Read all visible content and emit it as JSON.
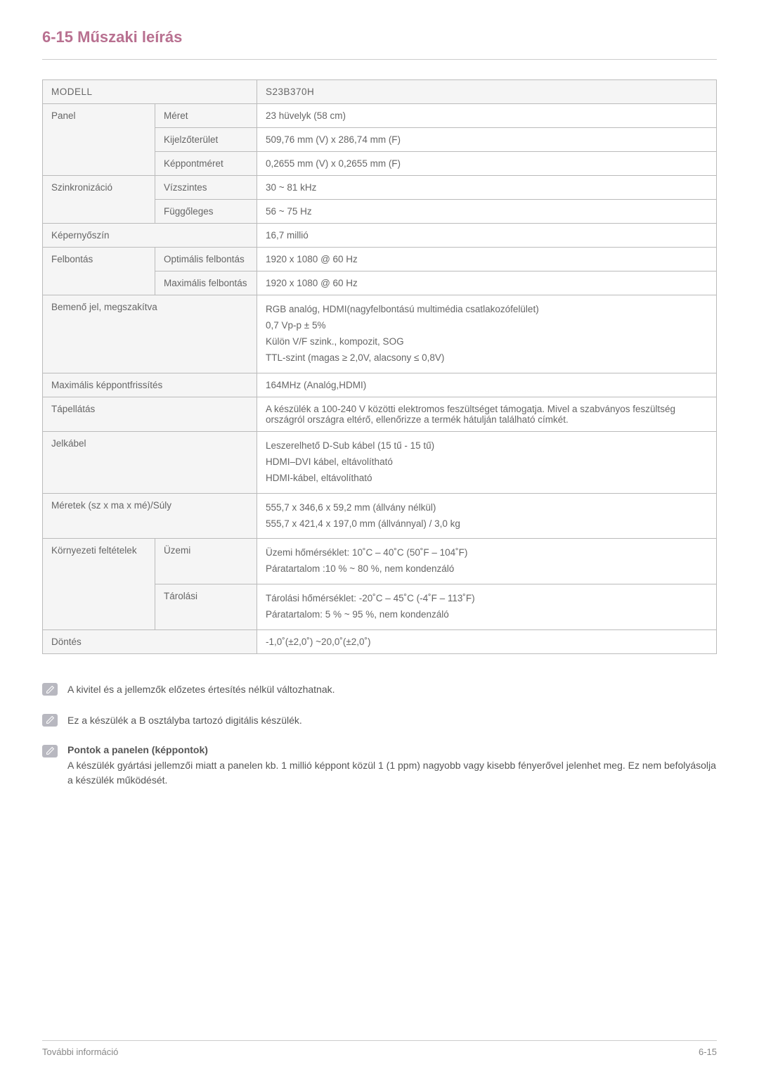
{
  "heading": "6-15  Műszaki leírás",
  "table": {
    "header_model": "MODELL",
    "header_product": "S23B370H",
    "rows": [
      {
        "a": "Panel",
        "b": "Méret",
        "c": "23 hüvelyk (58 cm)",
        "a_rowspan": 3
      },
      {
        "b": "Kijelzőterület",
        "c": "509,76 mm (V) x 286,74 mm (F)"
      },
      {
        "b": "Képpontméret",
        "c": "0,2655 mm (V) x 0,2655 mm (F)"
      },
      {
        "a": "Szinkronizáció",
        "b": "Vízszintes",
        "c": "30 ~ 81 kHz",
        "a_rowspan": 2
      },
      {
        "b": "Függőleges",
        "c": "56 ~ 75 Hz"
      },
      {
        "a": "Képernyőszín",
        "ab_span": true,
        "c": "16,7 millió"
      },
      {
        "a": "Felbontás",
        "b": "Optimális felbontás",
        "c": "1920 x 1080 @ 60 Hz",
        "a_rowspan": 2
      },
      {
        "b": "Maximális felbontás",
        "c": "1920 x 1080 @ 60 Hz"
      },
      {
        "a": "Bemenő jel, megszakítva",
        "ab_span": true,
        "c": "RGB analóg, HDMI(nagyfelbontású multimédia csatlakozófelület)\n0,7 Vp-p ± 5%\nKülön V/F szink., kompozit, SOG\nTTL-szint (magas ≥ 2,0V, alacsony ≤ 0,8V)"
      },
      {
        "a": "Maximális képpontfrissítés",
        "ab_span": true,
        "c": "164MHz (Analóg,HDMI)"
      },
      {
        "a": "Tápellátás",
        "ab_span": true,
        "c": "A készülék a 100-240 V közötti elektromos feszültséget támogatja. Mivel a szab­ványos feszültség országról országra eltérő, ellenőrizze a termék hátulján talál­ható címkét."
      },
      {
        "a": "Jelkábel",
        "ab_span": true,
        "c": "Leszerelhető D-Sub kábel (15 tű - 15 tű)\nHDMI–DVI kábel, eltávolítható\nHDMI-kábel, eltávolítható"
      },
      {
        "a": "Méretek (sz x ma x mé)/Súly",
        "ab_span": true,
        "c": "555,7 x 346,6 x 59,2 mm (állvány nélkül)\n555,7 x 421,4 x 197,0 mm (állvánnyal) / 3,0 kg"
      },
      {
        "a": "Környezeti feltételek",
        "b": "Üzemi",
        "c": "Üzemi hőmérséklet: 10˚C – 40˚C (50˚F – 104˚F)\nPáratartalom :10 % ~ 80 %, nem kondenzáló",
        "a_rowspan": 2
      },
      {
        "b": "Tárolási",
        "c": "Tárolási hőmérséklet: -20˚C – 45˚C (-4˚F – 113˚F)\nPáratartalom: 5 % ~ 95 %, nem kondenzáló"
      },
      {
        "a": "Döntés",
        "ab_span": true,
        "c": "-1,0˚(±2,0˚) ~20,0˚(±2,0˚)"
      }
    ]
  },
  "notes": {
    "n1": "A kivitel és a jellemzők előzetes értesítés nélkül változhatnak.",
    "n2": "Ez a készülék a B osztályba tartozó digitális készülék.",
    "n3_title": "Pontok a panelen (képpontok)",
    "n3_body": "A készülék gyártási jellemzői miatt a panelen kb. 1 millió képpont közül 1 (1 ppm) nagyobb vagy kisebb fényerővel jelenhet meg. Ez nem befolyásolja a készülék működését."
  },
  "footer": {
    "left": "További információ",
    "right": "6-15"
  },
  "colors": {
    "accent": "#b87090"
  }
}
